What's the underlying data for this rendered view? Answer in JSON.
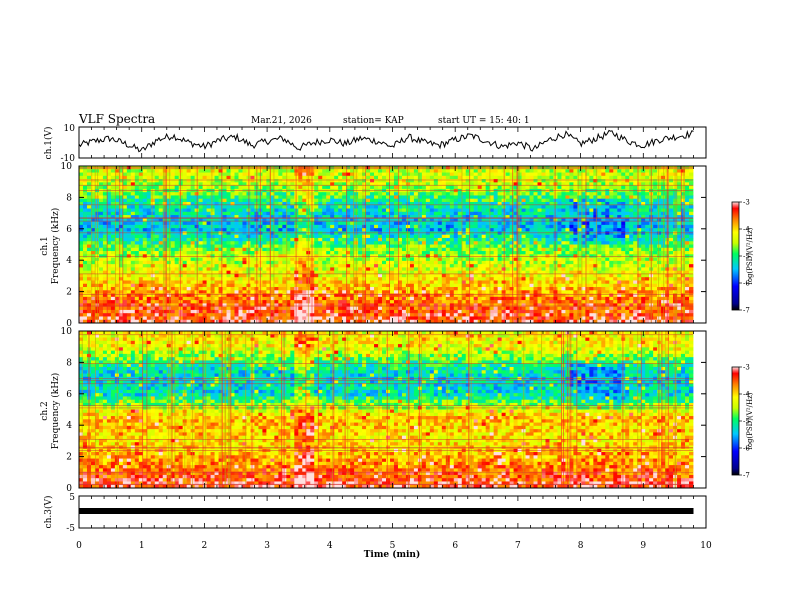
{
  "header": {
    "title": "VLF Spectra",
    "date": "Mar.21, 2026",
    "station": "station= KAP",
    "start": "start  UT =  15: 40: 1"
  },
  "colors": {
    "cmap": [
      "#000080",
      "#0000ff",
      "#00c8ff",
      "#00ff80",
      "#ffff00",
      "#ff7f00",
      "#ff0000",
      "#ffffff"
    ]
  },
  "chart_data": [
    {
      "type": "line",
      "id": "ch1",
      "ylabel": "ch.1(V)",
      "ylim": [
        -10,
        10
      ],
      "yticks": [
        "10",
        "-10"
      ],
      "xlim": [
        0,
        10
      ],
      "description_series": "waveform amplitude fluctuating around zero, roughly -8 to 8 V",
      "x": [
        0,
        0.25,
        0.5,
        0.75,
        1,
        1.25,
        1.5,
        1.75,
        2,
        2.25,
        2.5,
        2.75,
        3,
        3.25,
        3.5,
        3.75,
        4,
        4.25,
        4.5,
        4.75,
        5,
        5.25,
        5.5,
        5.75,
        6,
        6.25,
        6.5,
        6.75,
        7,
        7.25,
        7.5,
        7.75,
        8,
        8.25,
        8.5,
        8.75,
        9,
        9.25,
        9.5,
        9.75
      ],
      "values": [
        -2,
        1,
        3,
        -1,
        -6,
        2,
        5,
        0,
        -3,
        2,
        4,
        -2,
        1,
        3,
        -4,
        0,
        2,
        -1,
        3,
        1,
        -3,
        4,
        0,
        -2,
        2,
        5,
        1,
        -3,
        0,
        -5,
        2,
        6,
        -1,
        3,
        7,
        1,
        -2,
        2,
        4,
        6
      ]
    },
    {
      "type": "heatmap",
      "id": "ch1-spec",
      "ylabel": "ch.1\nFrequency (kHz)",
      "xlim": [
        0,
        10
      ],
      "ylim": [
        0,
        10
      ],
      "yticks": [
        "0",
        "2",
        "4",
        "6",
        "8",
        "10"
      ],
      "colorbar": {
        "label": "log(PSD)(V²/Hz)",
        "range": [
          -7,
          -3
        ],
        "ticks": [
          "-3",
          "-4",
          "-5",
          "-6",
          "-7"
        ]
      },
      "bands_khz_logpsd": [
        [
          0.2,
          -3.3
        ],
        [
          1.5,
          -3.6
        ],
        [
          3.0,
          -4.2
        ],
        [
          4.5,
          -4.6
        ],
        [
          6.0,
          -5.5
        ],
        [
          7.5,
          -5.2
        ],
        [
          9.0,
          -4.4
        ]
      ]
    },
    {
      "type": "heatmap",
      "id": "ch2-spec",
      "ylabel": "ch.2\nFrequency (kHz)",
      "xlim": [
        0,
        10
      ],
      "ylim": [
        0,
        10
      ],
      "yticks": [
        "0",
        "2",
        "4",
        "6",
        "8",
        "10"
      ],
      "colorbar": {
        "label": "log(PSD)(V²/Hz)",
        "range": [
          -7,
          -3
        ],
        "ticks": [
          "-3",
          "-4",
          "-5",
          "-6",
          "-7"
        ]
      },
      "bands_khz_logpsd": [
        [
          0.2,
          -3.3
        ],
        [
          1.5,
          -3.7
        ],
        [
          3.0,
          -4.1
        ],
        [
          4.5,
          -3.9
        ],
        [
          6.0,
          -5.3
        ],
        [
          7.5,
          -5.3
        ],
        [
          9.0,
          -4.2
        ]
      ]
    },
    {
      "type": "line",
      "id": "ch3",
      "ylabel": "ch.3(V)",
      "ylim": [
        -5,
        5
      ],
      "yticks": [
        "5",
        "-5"
      ],
      "xlim": [
        0,
        9.8
      ],
      "x": [
        0,
        9.8
      ],
      "values": [
        -1,
        -1
      ]
    }
  ],
  "xaxis": {
    "label": "Time  (min)",
    "ticks": [
      "0",
      "1",
      "2",
      "3",
      "4",
      "5",
      "6",
      "7",
      "8",
      "9",
      "10"
    ]
  }
}
